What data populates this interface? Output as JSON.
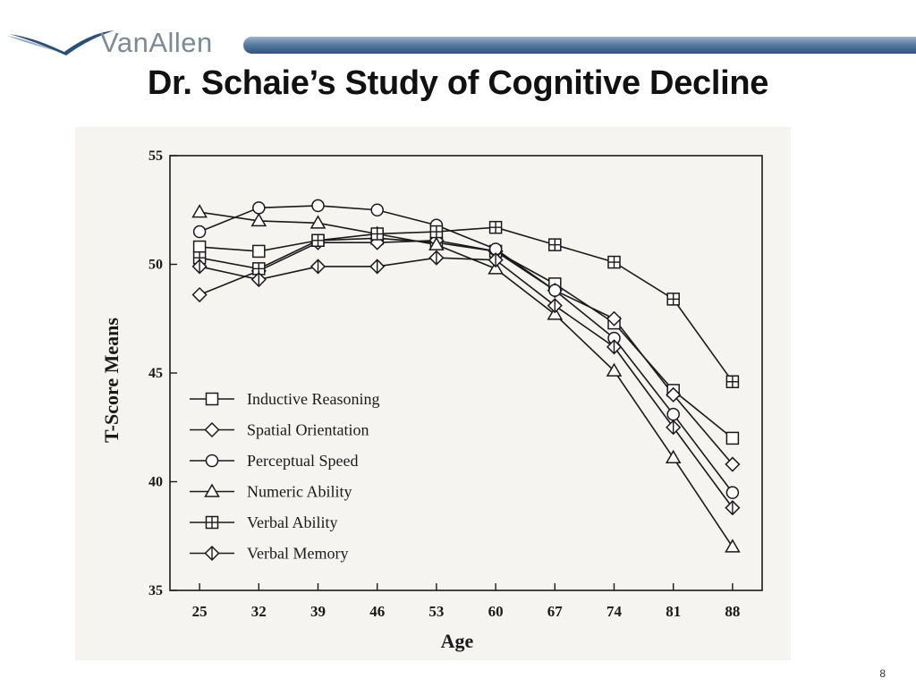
{
  "brand": {
    "name": "VanAllen",
    "accent": "#2e557e"
  },
  "slide": {
    "title": "Dr. Schaie’s Study of Cognitive Decline",
    "number": "8"
  },
  "chart_data": {
    "type": "line",
    "xlabel": "Age",
    "ylabel": "T-Score Means",
    "x": [
      25,
      32,
      39,
      46,
      53,
      60,
      67,
      74,
      81,
      88
    ],
    "ylim": [
      35,
      55
    ],
    "yticks": [
      35,
      40,
      45,
      50,
      55
    ],
    "grid": false,
    "legend_position": "inside-left",
    "series": [
      {
        "name": "Inductive Reasoning",
        "marker": "square",
        "values": [
          50.8,
          50.6,
          51.1,
          51.2,
          51.0,
          50.6,
          49.1,
          47.3,
          44.2,
          42.0
        ]
      },
      {
        "name": "Spatial Orientation",
        "marker": "diamond",
        "values": [
          48.6,
          49.7,
          51.0,
          51.0,
          51.1,
          50.6,
          48.8,
          47.5,
          44.0,
          40.8
        ]
      },
      {
        "name": "Perceptual Speed",
        "marker": "circle",
        "values": [
          51.5,
          52.6,
          52.7,
          52.5,
          51.8,
          50.7,
          48.8,
          46.6,
          43.1,
          39.5
        ]
      },
      {
        "name": "Numeric Ability",
        "marker": "triangle",
        "values": [
          52.4,
          52.0,
          51.9,
          51.4,
          50.9,
          49.8,
          47.7,
          45.1,
          41.1,
          37.0
        ]
      },
      {
        "name": "Verbal Ability",
        "marker": "squareplus",
        "values": [
          50.3,
          49.8,
          51.1,
          51.4,
          51.5,
          51.7,
          50.9,
          50.1,
          48.4,
          44.6
        ]
      },
      {
        "name": "Verbal Memory",
        "marker": "diamondplus",
        "values": [
          49.9,
          49.3,
          49.9,
          49.9,
          50.3,
          50.2,
          48.1,
          46.2,
          42.5,
          38.8
        ]
      }
    ]
  }
}
